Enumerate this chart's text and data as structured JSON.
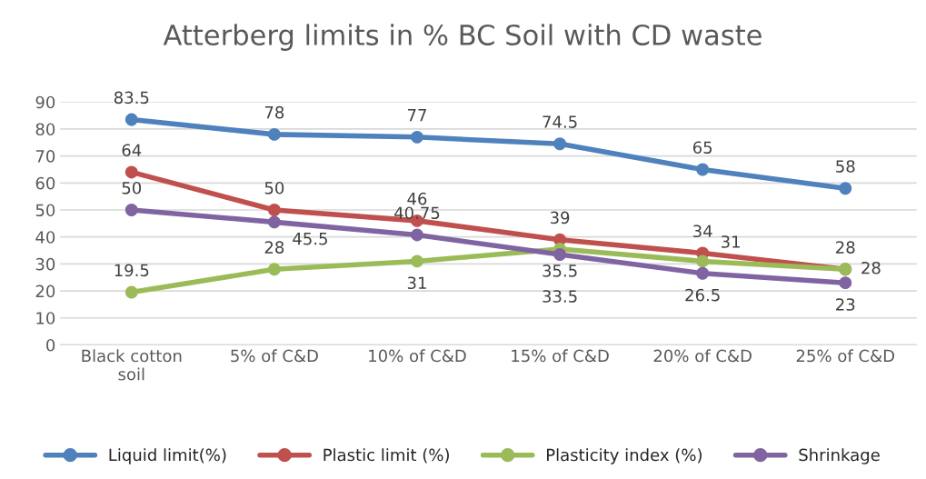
{
  "chart_data": {
    "type": "line",
    "title": "Atterberg limits in % BC Soil with CD waste",
    "categories": [
      "Black cotton\nsoil",
      "5% of C&D",
      "10% of C&D",
      "15% of C&D",
      "20% of C&D",
      "25% of C&D"
    ],
    "series": [
      {
        "name": "Liquid limit(%)",
        "color": "#4f81bd",
        "values": [
          83.5,
          78,
          77,
          74.5,
          65,
          58
        ]
      },
      {
        "name": "Plastic limit (%)",
        "color": "#c0504d",
        "values": [
          64,
          50,
          46,
          39,
          34,
          28
        ]
      },
      {
        "name": "Plasticity index (%)",
        "color": "#9bbb59",
        "values": [
          19.5,
          28,
          31,
          35.5,
          31,
          28
        ]
      },
      {
        "name": "Shrinkage",
        "color": "#8064a2",
        "values": [
          50,
          45.5,
          40.75,
          33.5,
          26.5,
          23
        ]
      }
    ],
    "ylim": [
      0,
      90
    ],
    "yticks": [
      0,
      10,
      20,
      30,
      40,
      50,
      60,
      70,
      80,
      90
    ],
    "grid": "y",
    "legend": "bottom",
    "marker": "circle",
    "line_style": "solid",
    "data_labels": true
  }
}
